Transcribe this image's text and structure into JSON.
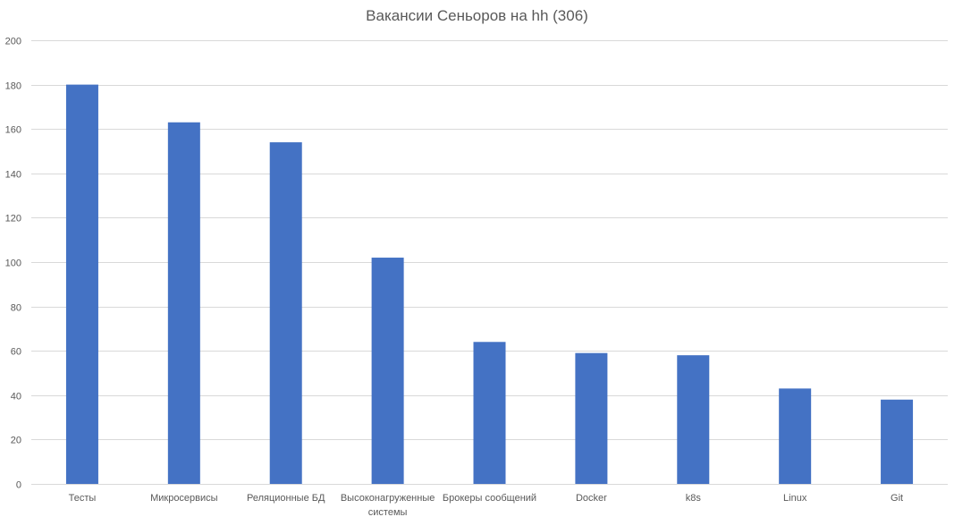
{
  "chart_data": {
    "type": "bar",
    "title": "Вакансии Сеньоров на hh (306)",
    "categories": [
      "Тесты",
      "Микросервисы",
      "Реляционные БД",
      "Высоконагруженные системы",
      "Брокеры сообщений",
      "Docker",
      "k8s",
      "Linux",
      "Git"
    ],
    "category_lines": [
      [
        "Тесты"
      ],
      [
        "Микросервисы"
      ],
      [
        "Реляционные БД"
      ],
      [
        "Высоконагруженные",
        "системы"
      ],
      [
        "Брокеры сообщений"
      ],
      [
        "Docker"
      ],
      [
        "k8s"
      ],
      [
        "Linux"
      ],
      [
        "Git"
      ]
    ],
    "values": [
      180,
      163,
      154,
      102,
      64,
      59,
      58,
      43,
      38
    ],
    "xlabel": "",
    "ylabel": "",
    "ylim": [
      0,
      200
    ],
    "yticks": [
      0,
      20,
      40,
      60,
      80,
      100,
      120,
      140,
      160,
      180,
      200
    ],
    "grid": true,
    "legend": "none",
    "bar_color": "#4472C4",
    "grid_color": "#D9D9D9",
    "text_color": "#595959"
  }
}
